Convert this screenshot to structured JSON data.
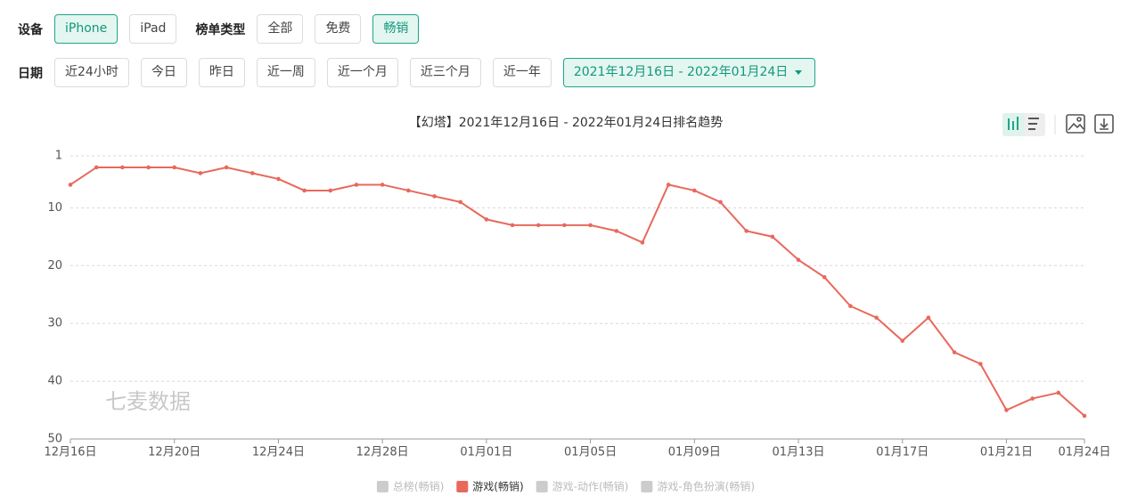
{
  "filters": [
    {
      "label": "设备",
      "options": [
        "iPhone",
        "iPad"
      ],
      "selected": 0
    },
    {
      "label": "榜单类型",
      "options": [
        "全部",
        "免费",
        "畅销"
      ],
      "selected": 2
    }
  ],
  "date_filter": {
    "label": "日期",
    "options": [
      "近24小时",
      "今日",
      "昨日",
      "近一周",
      "近一个月",
      "近三个月",
      "近一年"
    ],
    "range": "2021年12月16日 - 2022年01月24日"
  },
  "chart_data": {
    "type": "line",
    "title": "【幻塔】2021年12月16日 - 2022年01月24日排名趋势",
    "watermark": "七麦数据",
    "categories": [
      "12月16日",
      null,
      null,
      null,
      "12月20日",
      null,
      null,
      null,
      "12月24日",
      null,
      null,
      null,
      "12月28日",
      null,
      null,
      null,
      "01月01日",
      null,
      null,
      null,
      "01月05日",
      null,
      null,
      null,
      "01月09日",
      null,
      null,
      null,
      "01月13日",
      null,
      null,
      null,
      "01月17日",
      null,
      null,
      null,
      "01月21日",
      null,
      null,
      "01月24日"
    ],
    "series": [
      {
        "name": "总榜(畅销)",
        "color": "#cccccc",
        "visible": false
      },
      {
        "name": "游戏(畅销)",
        "color": "#e8695c",
        "visible": true,
        "values": [
          6,
          3,
          3,
          3,
          3,
          4,
          3,
          4,
          5,
          7,
          7,
          6,
          6,
          7,
          8,
          9,
          12,
          13,
          13,
          13,
          13,
          14,
          16,
          6,
          7,
          9,
          14,
          15,
          19,
          22,
          27,
          29,
          33,
          29,
          35,
          37,
          45,
          43,
          42,
          46
        ]
      },
      {
        "name": "游戏-动作(畅销)",
        "color": "#cccccc",
        "visible": false
      },
      {
        "name": "游戏-角色扮演(畅销)",
        "color": "#cccccc",
        "visible": false
      }
    ],
    "ylim": [
      1,
      50
    ],
    "y_inverted": true,
    "yticks": [
      1,
      10,
      20,
      30,
      40,
      50
    ],
    "grid": true
  }
}
